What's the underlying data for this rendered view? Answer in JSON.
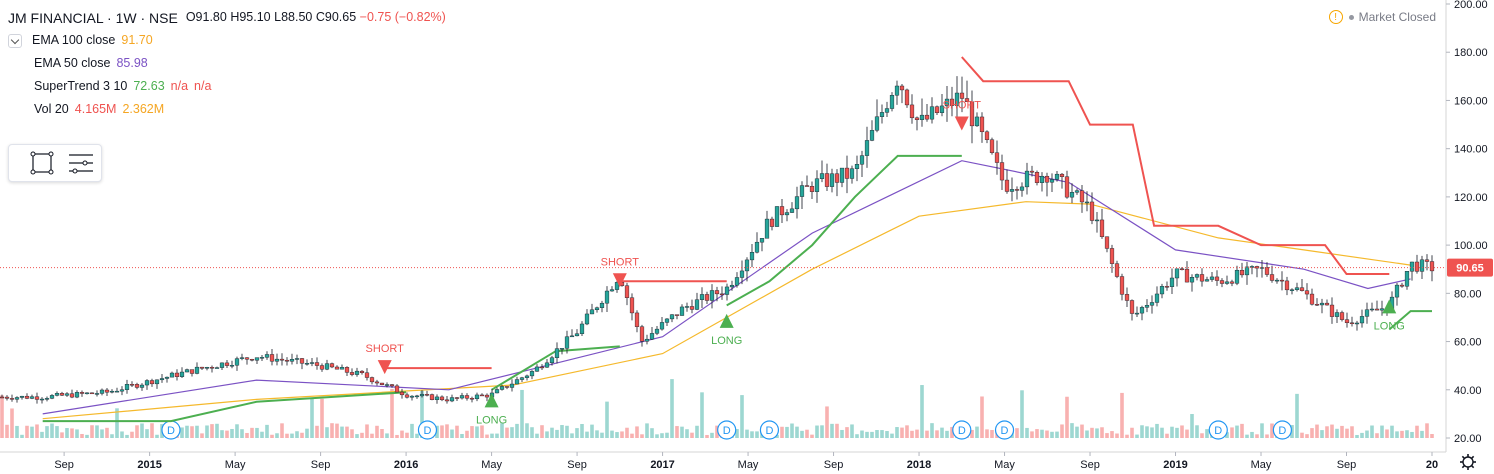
{
  "legend": {
    "title": "JM FINANCIAL · 1W · NSE",
    "open": "O91.80",
    "high": "H95.10",
    "low": "L88.50",
    "close": "C90.65",
    "change": "−0.75 (−0.82%)",
    "ema100_label": "EMA 100 close",
    "ema100_value": "91.70",
    "ema50_label": "EMA 50 close",
    "ema50_value": "85.98",
    "supertrend_label": "SuperTrend 3 10",
    "supertrend_value": "72.63",
    "supertrend_na1": "n/a",
    "supertrend_na2": "n/a",
    "vol_label": "Vol 20",
    "vol_value": "4.165M",
    "vol_ma": "2.362M"
  },
  "status": {
    "warning_glyph": "!",
    "market_status": "Market Closed"
  },
  "colors": {
    "up": "#26a69a",
    "down": "#ef5350",
    "ema100": "#f5b92c",
    "ema50": "#7b52c4",
    "supertrend_up": "#4caf50",
    "supertrend_down": "#ef5350",
    "ema100_text": "#f5a623",
    "ema50_text": "#7b52c4",
    "supertrend_text": "#4caf50",
    "supertrend_na": "#ef5350",
    "vol_text": "#ef5350",
    "vol_ma_text": "#f5a623",
    "price_line": "#ef5350"
  },
  "icons": {
    "collapse": "chevron-down-icon",
    "rectangle_tool": "rectangle-tool-icon",
    "lines_tool": "horizontal-lines-icon",
    "settings": "gear-icon",
    "warning": "warning-icon"
  },
  "chart_data": {
    "type": "candlestick",
    "y_axis": {
      "ticks": [
        "20.00",
        "40.00",
        "60.00",
        "80.00",
        "100.00",
        "120.00",
        "140.00",
        "160.00",
        "180.00",
        "200.00"
      ],
      "range": [
        20,
        200
      ]
    },
    "x_axis": {
      "ticks": [
        "Sep",
        "2015",
        "May",
        "Sep",
        "2016",
        "May",
        "Sep",
        "2017",
        "May",
        "Sep",
        "2018",
        "May",
        "Sep",
        "2019",
        "May",
        "Sep",
        "20"
      ]
    },
    "last_price_label": "90.65",
    "last_price": 90.65,
    "signals": [
      {
        "type": "SHORT",
        "date": "2015-12",
        "price": 49
      },
      {
        "type": "LONG",
        "date": "2016-05",
        "price": 36
      },
      {
        "type": "SHORT",
        "date": "2016-11",
        "price": 85
      },
      {
        "type": "LONG",
        "date": "2017-04",
        "price": 69
      },
      {
        "type": "SHORT",
        "date": "2018-03",
        "price": 150
      },
      {
        "type": "LONG",
        "date": "2019-11",
        "price": 75
      }
    ],
    "dividend_marker": "D",
    "dividends": [
      "2015-02",
      "2016-02",
      "2017-04",
      "2017-06",
      "2018-03",
      "2018-05",
      "2019-03",
      "2019-06"
    ],
    "price_path": [
      [
        "2014-08",
        37
      ],
      [
        "2014-11",
        39
      ],
      [
        "2015-03",
        48
      ],
      [
        "2015-06",
        54
      ],
      [
        "2015-09",
        50
      ],
      [
        "2015-11",
        46
      ],
      [
        "2016-01",
        38
      ],
      [
        "2016-03",
        36
      ],
      [
        "2016-05",
        38
      ],
      [
        "2016-07",
        48
      ],
      [
        "2016-09",
        64
      ],
      [
        "2016-11",
        88
      ],
      [
        "2016-12",
        60
      ],
      [
        "2017-02",
        74
      ],
      [
        "2017-04",
        82
      ],
      [
        "2017-06",
        110
      ],
      [
        "2017-08",
        125
      ],
      [
        "2017-10",
        130
      ],
      [
        "2017-12",
        170
      ],
      [
        "2018-01",
        150
      ],
      [
        "2018-03",
        162
      ],
      [
        "2018-05",
        125
      ],
      [
        "2018-07",
        130
      ],
      [
        "2018-09",
        115
      ],
      [
        "2018-11",
        70
      ],
      [
        "2019-01",
        88
      ],
      [
        "2019-03",
        85
      ],
      [
        "2019-05",
        90
      ],
      [
        "2019-07",
        80
      ],
      [
        "2019-09",
        68
      ],
      [
        "2019-11",
        75
      ],
      [
        "2019-12",
        92
      ],
      [
        "2020-01",
        90.65
      ]
    ],
    "ema100_path": [
      [
        "2014-08",
        28
      ],
      [
        "2015-06",
        36
      ],
      [
        "2016-06",
        42
      ],
      [
        "2017-01",
        55
      ],
      [
        "2017-08",
        90
      ],
      [
        "2018-01",
        112
      ],
      [
        "2018-06",
        118
      ],
      [
        "2018-09",
        117
      ],
      [
        "2019-03",
        103
      ],
      [
        "2019-07",
        98
      ],
      [
        "2019-12",
        91.7
      ]
    ],
    "ema50_path": [
      [
        "2014-08",
        30
      ],
      [
        "2015-06",
        44
      ],
      [
        "2016-03",
        40
      ],
      [
        "2017-01",
        62
      ],
      [
        "2017-08",
        105
      ],
      [
        "2018-03",
        135
      ],
      [
        "2018-08",
        126
      ],
      [
        "2019-01",
        98
      ],
      [
        "2019-07",
        90
      ],
      [
        "2019-10",
        82
      ],
      [
        "2019-12",
        85.98
      ]
    ],
    "supertrend_segments": [
      {
        "trend": "up",
        "points": [
          [
            "2014-08",
            27
          ],
          [
            "2015-02",
            27
          ],
          [
            "2015-06",
            35
          ],
          [
            "2016-01",
            39
          ]
        ]
      },
      {
        "trend": "down",
        "points": [
          [
            "2015-12",
            49
          ],
          [
            "2016-05",
            49
          ]
        ]
      },
      {
        "trend": "up",
        "points": [
          [
            "2016-05",
            40
          ],
          [
            "2016-08",
            56
          ],
          [
            "2016-11",
            58
          ]
        ]
      },
      {
        "trend": "down",
        "points": [
          [
            "2016-11",
            85
          ],
          [
            "2017-04",
            85
          ]
        ]
      },
      {
        "trend": "up",
        "points": [
          [
            "2017-04",
            75
          ],
          [
            "2017-06",
            85
          ],
          [
            "2017-08",
            100
          ],
          [
            "2017-10",
            120
          ],
          [
            "2017-12",
            137
          ],
          [
            "2018-03",
            137
          ]
        ]
      },
      {
        "trend": "down",
        "points": [
          [
            "2018-03",
            178
          ],
          [
            "2018-04",
            168
          ],
          [
            "2018-08",
            168
          ],
          [
            "2018-09",
            150
          ],
          [
            "2018-11",
            150
          ],
          [
            "2018-12",
            108
          ],
          [
            "2019-03",
            108
          ],
          [
            "2019-05",
            100
          ],
          [
            "2019-08",
            100
          ],
          [
            "2019-09",
            88
          ],
          [
            "2019-11",
            88
          ]
        ]
      },
      {
        "trend": "up",
        "points": [
          [
            "2019-11",
            65
          ],
          [
            "2019-12",
            72.63
          ],
          [
            "2020-01",
            72.63
          ]
        ]
      }
    ]
  }
}
